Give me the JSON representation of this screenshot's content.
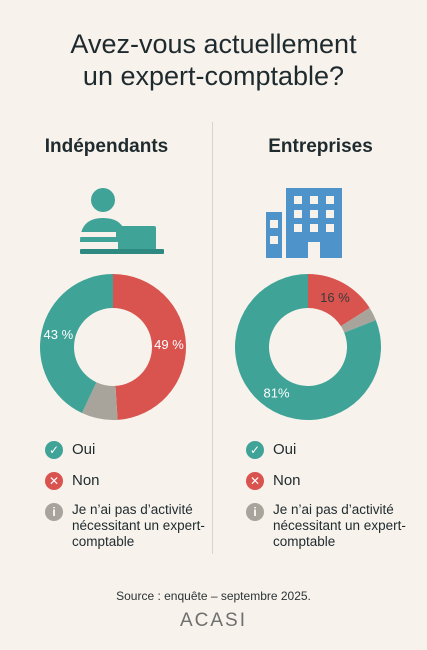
{
  "title": {
    "line1": "Avez-vous actuellement",
    "line2": "un expert-comptable?"
  },
  "colors": {
    "oui": "#3fa398",
    "non": "#d9534f",
    "na": "#a8a39b",
    "accent_blue": "#4e94cb"
  },
  "legend": {
    "oui": "Oui",
    "non": "Non",
    "na": "Je n’ai pas d’activité nécessitant un expert-comptable"
  },
  "chart_data": [
    {
      "type": "pie",
      "title": "Indépendants",
      "icon": "person-laptop-icon",
      "labels": [
        "Oui",
        "Non",
        "Je n’ai pas d’activité nécessitant un expert-comptable"
      ],
      "values": [
        43,
        49,
        8
      ],
      "data_labels": [
        "43 %",
        "49 %",
        ""
      ]
    },
    {
      "type": "pie",
      "title": "Entreprises",
      "icon": "building-icon",
      "labels": [
        "Oui",
        "Non",
        "Je n’ai pas d’activité nécessitant un expert-comptable"
      ],
      "values": [
        81,
        16,
        3
      ],
      "data_labels": [
        "81%",
        "16 %",
        ""
      ]
    }
  ],
  "source": "Source : enquête – septembre 2025.",
  "logo_text": "ACASI"
}
